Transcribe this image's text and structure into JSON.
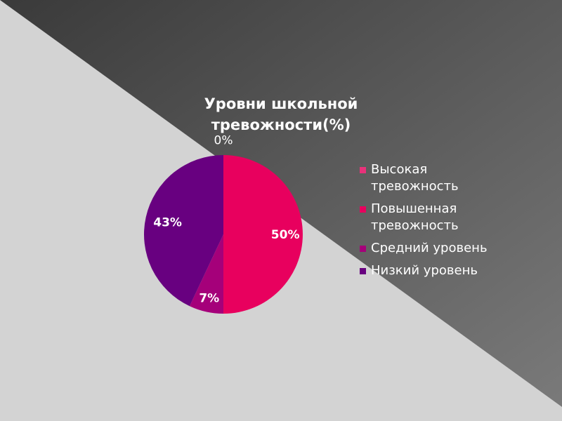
{
  "chart_data": {
    "type": "pie",
    "title": "Уровни школьной тревожности(%)",
    "categories": [
      "Высокая тревожность",
      "Повышенная тревожность",
      "Средний уровень",
      "Низкий уровень"
    ],
    "values": [
      0,
      50,
      7,
      43
    ],
    "data_labels": [
      "0%",
      "50%",
      "7%",
      "43%"
    ],
    "colors": [
      "#e8317a",
      "#e8005e",
      "#a5007a",
      "#680080"
    ],
    "legend_position": "right"
  },
  "colors": {
    "background_light": "#d3d3d3",
    "background_dark": "#3a3a3a",
    "text": "#ffffff"
  }
}
